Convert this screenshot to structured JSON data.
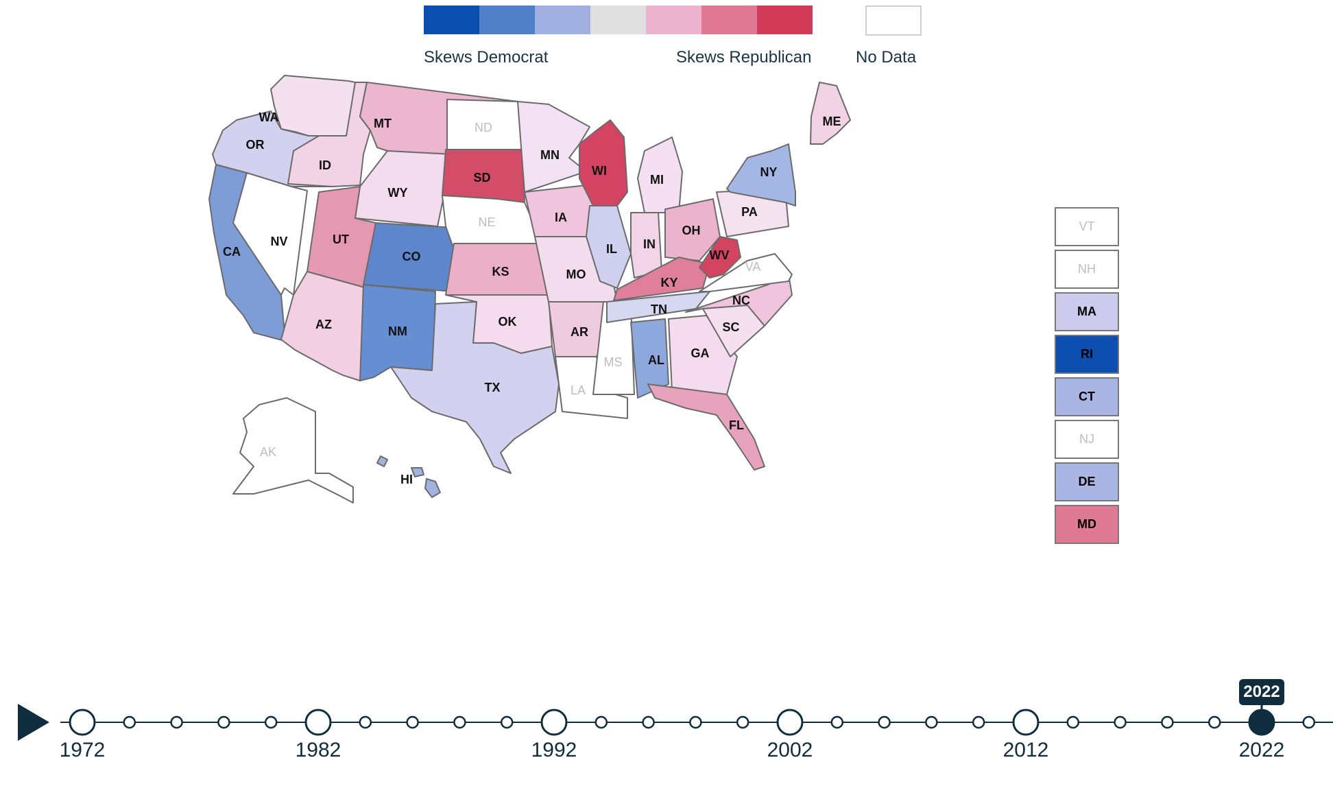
{
  "legend": {
    "colors": [
      "#0b4fb1",
      "#5080c7",
      "#a0afe0",
      "#e0e0e0",
      "#ebb4cc",
      "#e07a94",
      "#d23a58"
    ],
    "democrat_label": "Skews Democrat",
    "republican_label": "Skews Republican",
    "nodata_label": "No Data"
  },
  "states": [
    {
      "abbr": "WA",
      "color": "#f4e0ee"
    },
    {
      "abbr": "OR",
      "color": "#d2d2f0"
    },
    {
      "abbr": "CA",
      "color": "#7e9cd6"
    },
    {
      "abbr": "NV",
      "color": "#ffffff"
    },
    {
      "abbr": "ID",
      "color": "#f2d2e5"
    },
    {
      "abbr": "MT",
      "color": "#ebb6ce"
    },
    {
      "abbr": "WY",
      "color": "#f2dcee"
    },
    {
      "abbr": "UT",
      "color": "#e598b1"
    },
    {
      "abbr": "AZ",
      "color": "#f2cfe3"
    },
    {
      "abbr": "CO",
      "color": "#5e86cc"
    },
    {
      "abbr": "NM",
      "color": "#668ed2"
    },
    {
      "abbr": "ND",
      "color": "#ffffff",
      "nodata": true
    },
    {
      "abbr": "SD",
      "color": "#d34d68"
    },
    {
      "abbr": "NE",
      "color": "#ffffff",
      "nodata": true
    },
    {
      "abbr": "KS",
      "color": "#ebafc8"
    },
    {
      "abbr": "OK",
      "color": "#f4dcee"
    },
    {
      "abbr": "TX",
      "color": "#d2d2f0"
    },
    {
      "abbr": "MN",
      "color": "#f2e2f4"
    },
    {
      "abbr": "IA",
      "color": "#efc4dc"
    },
    {
      "abbr": "MO",
      "color": "#f2dcee"
    },
    {
      "abbr": "AR",
      "color": "#efcbe0"
    },
    {
      "abbr": "LA",
      "color": "#ffffff",
      "nodata": true
    },
    {
      "abbr": "WI",
      "color": "#d44462"
    },
    {
      "abbr": "IL",
      "color": "#cfd0f0"
    },
    {
      "abbr": "MS",
      "color": "#ffffff",
      "nodata": true
    },
    {
      "abbr": "MI",
      "color": "#f4e0f2"
    },
    {
      "abbr": "IN",
      "color": "#f2d4e8"
    },
    {
      "abbr": "OH",
      "color": "#ebb4cc"
    },
    {
      "abbr": "KY",
      "color": "#e07f9b"
    },
    {
      "abbr": "TN",
      "color": "#d6d8f2"
    },
    {
      "abbr": "AL",
      "color": "#8ca8dc"
    },
    {
      "abbr": "GA",
      "color": "#f4dcee"
    },
    {
      "abbr": "FL",
      "color": "#e7a2bc"
    },
    {
      "abbr": "SC",
      "color": "#f4e0ef"
    },
    {
      "abbr": "NC",
      "color": "#efc4dc"
    },
    {
      "abbr": "VA",
      "color": "#ffffff",
      "nodata": true
    },
    {
      "abbr": "WV",
      "color": "#d2445f"
    },
    {
      "abbr": "PA",
      "color": "#f4e2ef"
    },
    {
      "abbr": "NY",
      "color": "#a4b6e4"
    },
    {
      "abbr": "ME",
      "color": "#f2d2e5"
    },
    {
      "abbr": "AK",
      "color": "#ffffff",
      "nodata": true
    },
    {
      "abbr": "HI",
      "color": "#a0b2e0"
    }
  ],
  "small_states": [
    {
      "abbr": "VT",
      "color": "#ffffff",
      "nodata": true
    },
    {
      "abbr": "NH",
      "color": "#ffffff",
      "nodata": true
    },
    {
      "abbr": "MA",
      "color": "#cccbee"
    },
    {
      "abbr": "RI",
      "color": "#0d4fb0"
    },
    {
      "abbr": "CT",
      "color": "#a9b6e4"
    },
    {
      "abbr": "NJ",
      "color": "#ffffff",
      "nodata": true
    },
    {
      "abbr": "DE",
      "color": "#a9b6e4"
    },
    {
      "abbr": "MD",
      "color": "#e07a94"
    }
  ],
  "timeline": {
    "years": [
      1972,
      1982,
      1992,
      2002,
      2012,
      2022
    ],
    "current_year": "2022",
    "labels": [
      "1972",
      "1982",
      "1992",
      "2002",
      "2012",
      "2022"
    ]
  }
}
